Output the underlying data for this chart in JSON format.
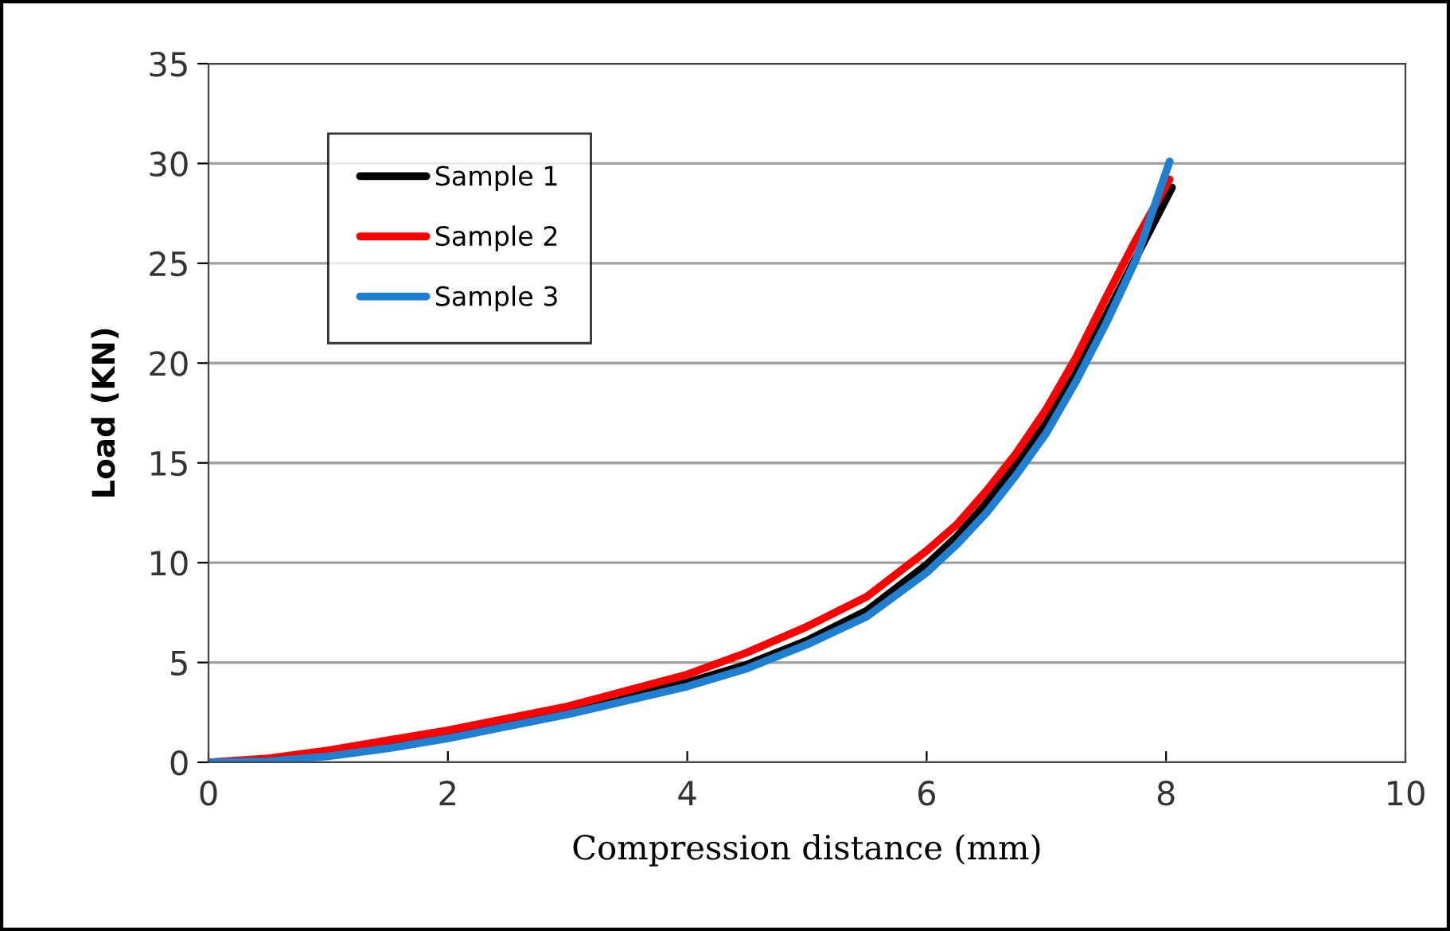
{
  "chart_data": {
    "type": "line",
    "xlabel": "Compression distance (mm)",
    "ylabel": "Load (KN)",
    "xlim": [
      0,
      10
    ],
    "ylim": [
      0,
      35
    ],
    "xticks": [
      0,
      2,
      4,
      6,
      8,
      10
    ],
    "yticks": [
      0,
      5,
      10,
      15,
      20,
      25,
      30,
      35
    ],
    "grid": "y",
    "legend": "top left",
    "marker": "none",
    "line_style": "solid",
    "series": [
      {
        "name": "Sample 1",
        "color": "#000000",
        "x": [
          0,
          0.5,
          1,
          1.5,
          2,
          2.5,
          3,
          3.5,
          4,
          4.5,
          5,
          5.5,
          6,
          6.25,
          6.5,
          6.75,
          7,
          7.25,
          7.5,
          7.75,
          8.05
        ],
        "values": [
          0,
          0.1,
          0.4,
          0.9,
          1.4,
          2.0,
          2.6,
          3.3,
          4.0,
          4.9,
          6.1,
          7.6,
          9.9,
          11.3,
          13.0,
          14.9,
          17.0,
          19.5,
          22.4,
          25.3,
          28.8
        ]
      },
      {
        "name": "Sample 2",
        "color": "#ff0000",
        "x": [
          0,
          0.5,
          1,
          1.5,
          2,
          2.5,
          3,
          3.5,
          4,
          4.5,
          5,
          5.5,
          6,
          6.25,
          6.5,
          6.75,
          7,
          7.25,
          7.5,
          7.75,
          8.03
        ],
        "values": [
          0,
          0.2,
          0.6,
          1.1,
          1.6,
          2.2,
          2.8,
          3.6,
          4.4,
          5.5,
          6.8,
          8.3,
          10.6,
          11.9,
          13.6,
          15.5,
          17.7,
          20.3,
          23.3,
          26.2,
          29.2
        ]
      },
      {
        "name": "Sample 3",
        "color": "#1f7fd0",
        "x": [
          0,
          0.5,
          1,
          1.5,
          2,
          2.5,
          3,
          3.5,
          4,
          4.5,
          5,
          5.5,
          6,
          6.25,
          6.5,
          6.75,
          7,
          7.25,
          7.5,
          7.75,
          8.03
        ],
        "values": [
          0,
          0.05,
          0.3,
          0.7,
          1.2,
          1.8,
          2.4,
          3.1,
          3.8,
          4.7,
          5.9,
          7.3,
          9.5,
          10.9,
          12.5,
          14.4,
          16.5,
          19.1,
          22.0,
          25.2,
          30.1
        ]
      }
    ]
  }
}
